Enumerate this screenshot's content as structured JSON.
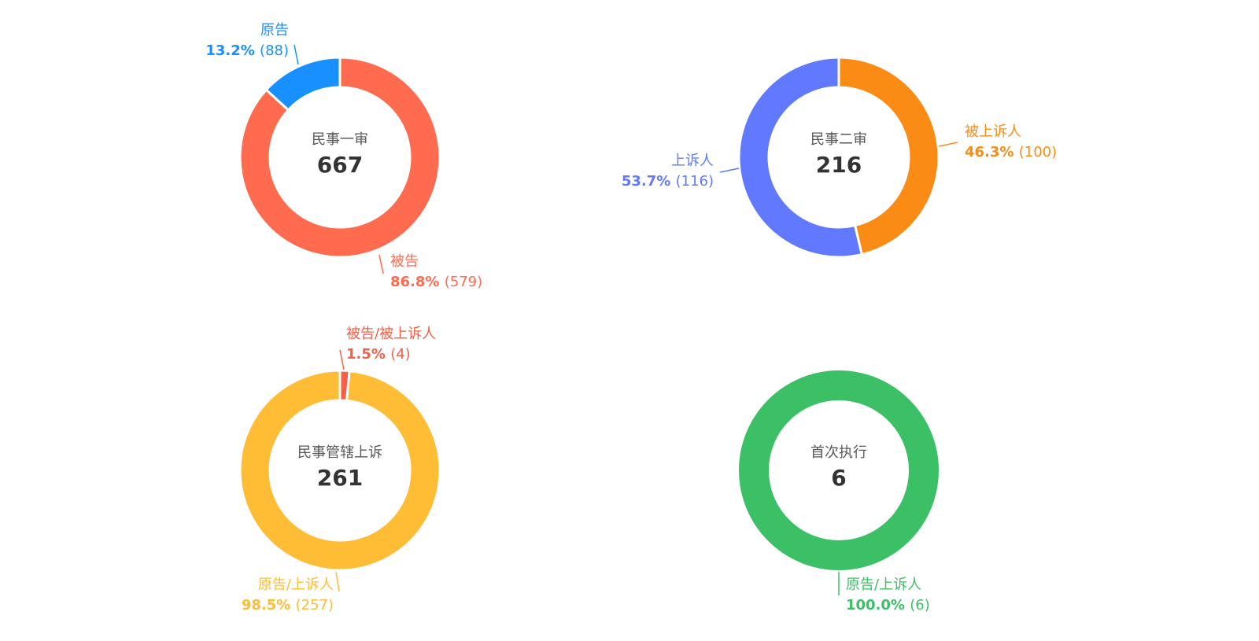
{
  "chart_data": [
    {
      "type": "pie",
      "center_label": "民事一审",
      "total": "667",
      "slices": [
        {
          "label": "被告",
          "percent": "86.8%",
          "count": "(579)",
          "value": 579,
          "color": "#FF6B4F"
        },
        {
          "label": "原告",
          "percent": "13.2%",
          "count": "(88)",
          "value": 88,
          "color": "#1890FF"
        }
      ]
    },
    {
      "type": "pie",
      "center_label": "民事二审",
      "total": "216",
      "slices": [
        {
          "label": "被上诉人",
          "percent": "46.3%",
          "count": "(100)",
          "value": 100,
          "color": "#FA8C16"
        },
        {
          "label": "上诉人",
          "percent": "53.7%",
          "count": "(116)",
          "value": 116,
          "color": "#6079FF"
        }
      ]
    },
    {
      "type": "pie",
      "center_label": "民事管辖上诉",
      "total": "261",
      "slices": [
        {
          "label": "被告/被上诉人",
          "percent": "1.5%",
          "count": "(4)",
          "value": 4,
          "color": "#F5604A"
        },
        {
          "label": "原告/上诉人",
          "percent": "98.5%",
          "count": "(257)",
          "value": 257,
          "color": "#FFBC35"
        }
      ]
    },
    {
      "type": "pie",
      "center_label": "首次执行",
      "total": "6",
      "slices": [
        {
          "label": "原告/上诉人",
          "percent": "100.0%",
          "count": "(6)",
          "value": 6,
          "color": "#3CC066"
        }
      ]
    }
  ]
}
